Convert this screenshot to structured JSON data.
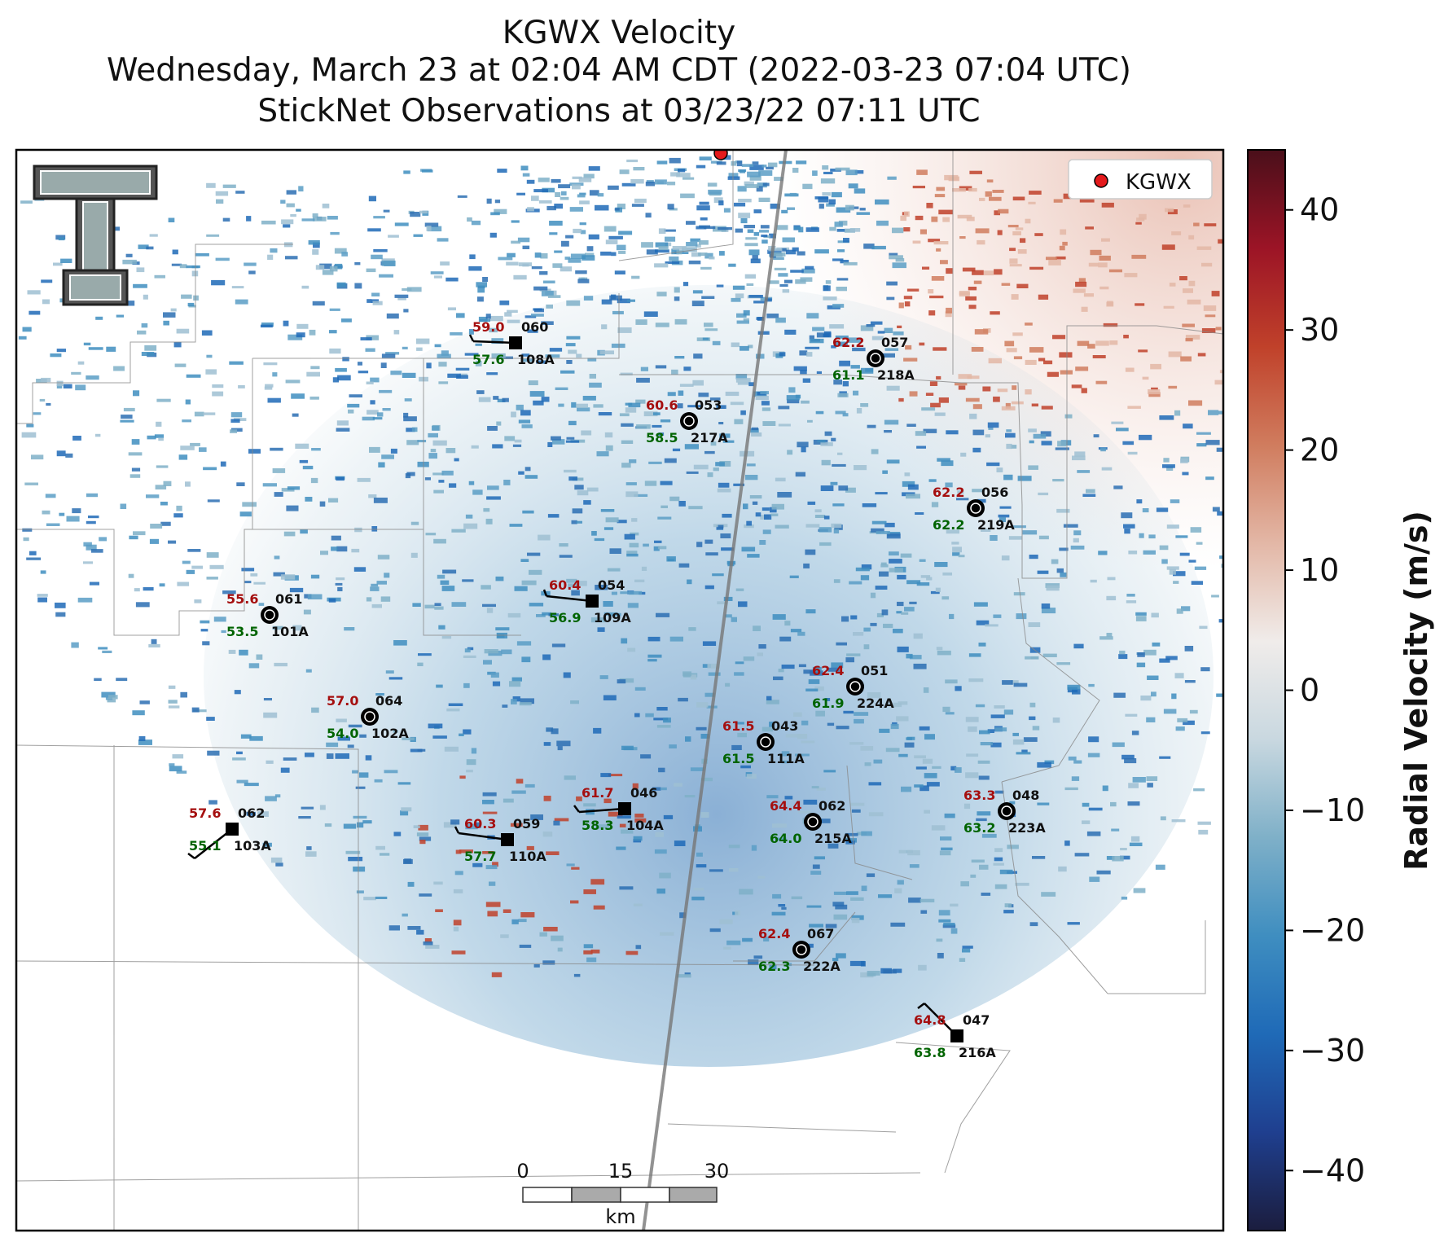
{
  "title": {
    "line1": "KGWX Velocity",
    "line2": "Wednesday, March 23 at 02:04 AM CDT (2022-03-23 07:04 UTC)",
    "line3": "StickNet Observations at 03/23/22 07:11 UTC"
  },
  "legend": {
    "label": "KGWX",
    "marker_color": "#e41a1c"
  },
  "colorbar": {
    "label": "Radial Velocity (m/s)",
    "ticks": [
      40,
      30,
      20,
      10,
      0,
      -10,
      -20,
      -30,
      -40
    ],
    "tick_labels": [
      "40",
      "30",
      "20",
      "10",
      "0",
      "−10",
      "−20",
      "−30",
      "−40"
    ],
    "range": [
      -45,
      45
    ],
    "colormap": [
      "#1b1d3e",
      "#1f3f8f",
      "#1f6ab7",
      "#3f8ec0",
      "#7fb0c8",
      "#c9d8e0",
      "#f0ecea",
      "#e3b7a6",
      "#d07c5e",
      "#c0412a",
      "#9c1426",
      "#4a0f1a"
    ]
  },
  "scalebar": {
    "ticks": [
      "0",
      "15",
      "30"
    ],
    "unit": "km"
  },
  "stations": [
    {
      "id": "108A",
      "temp": "59.0",
      "dew": "57.6",
      "dir": "060",
      "type": "probe",
      "wind": true
    },
    {
      "id": "218A",
      "temp": "62.2",
      "dew": "61.1",
      "dir": "057",
      "type": "tower",
      "wind": false
    },
    {
      "id": "217A",
      "temp": "60.6",
      "dew": "58.5",
      "dir": "053",
      "type": "tower",
      "wind": false
    },
    {
      "id": "219A",
      "temp": "62.2",
      "dew": "62.2",
      "dir": "056",
      "type": "tower",
      "wind": false
    },
    {
      "id": "101A",
      "temp": "55.6",
      "dew": "53.5",
      "dir": "061",
      "type": "tower",
      "wind": false
    },
    {
      "id": "109A",
      "temp": "60.4",
      "dew": "56.9",
      "dir": "054",
      "type": "probe",
      "wind": true
    },
    {
      "id": "224A",
      "temp": "62.4",
      "dew": "61.9",
      "dir": "051",
      "type": "tower",
      "wind": false
    },
    {
      "id": "102A",
      "temp": "57.0",
      "dew": "54.0",
      "dir": "064",
      "type": "tower",
      "wind": false
    },
    {
      "id": "111A",
      "temp": "61.5",
      "dew": "61.5",
      "dir": "043",
      "type": "tower",
      "wind": false
    },
    {
      "id": "103A",
      "temp": "57.6",
      "dew": "55.1",
      "dir": "062",
      "type": "probe",
      "wind": true
    },
    {
      "id": "110A",
      "temp": "60.3",
      "dew": "57.7",
      "dir": "059",
      "type": "probe",
      "wind": true
    },
    {
      "id": "104A",
      "temp": "61.7",
      "dew": "58.3",
      "dir": "046",
      "type": "probe",
      "wind": true
    },
    {
      "id": "215A",
      "temp": "64.4",
      "dew": "64.0",
      "dir": "062",
      "type": "tower",
      "wind": false
    },
    {
      "id": "223A",
      "temp": "63.3",
      "dew": "63.2",
      "dir": "048",
      "type": "tower",
      "wind": false
    },
    {
      "id": "222A",
      "temp": "62.4",
      "dew": "62.3",
      "dir": "067",
      "type": "tower",
      "wind": false
    },
    {
      "id": "216A",
      "temp": "64.8",
      "dew": "63.8",
      "dir": "047",
      "type": "probe",
      "wind": true
    }
  ]
}
